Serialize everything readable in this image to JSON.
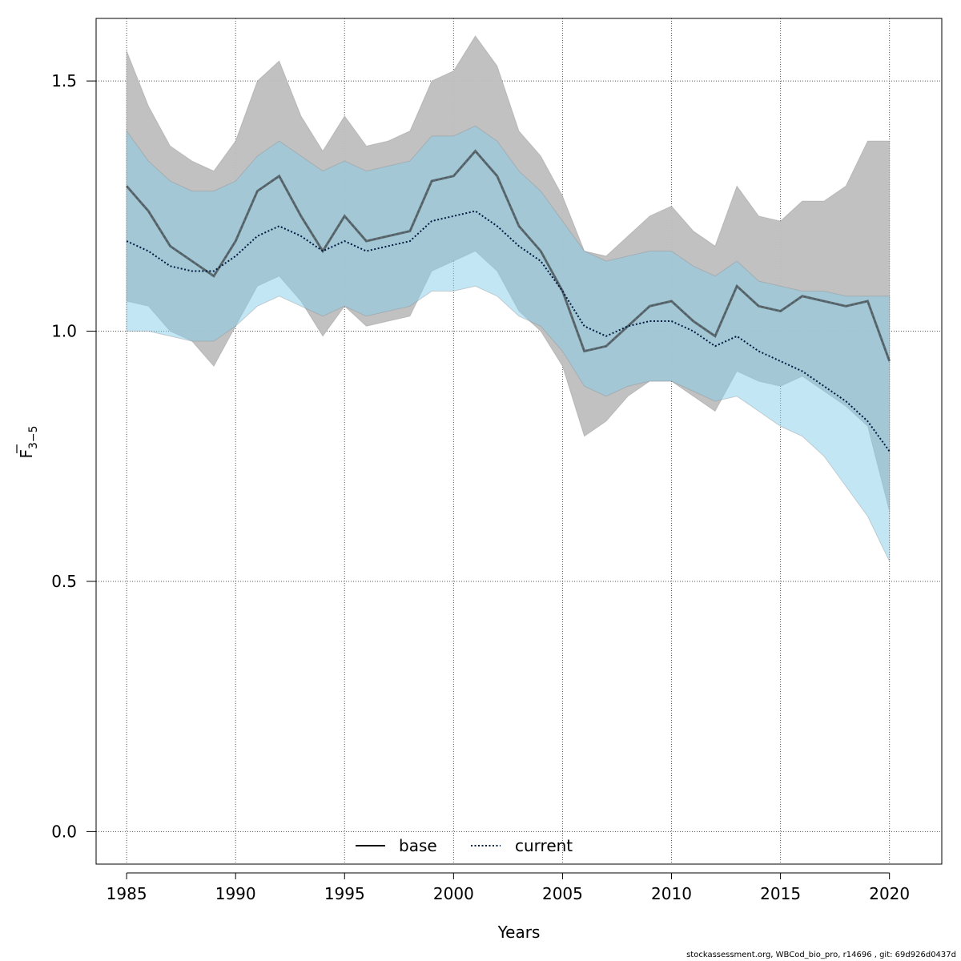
{
  "chart_data": {
    "type": "line",
    "xlabel": "Years",
    "ylabel_main": "F",
    "ylabel_sub": "3−5",
    "xlim": [
      1983.6,
      2022.4
    ],
    "ylim": [
      -0.065,
      1.625
    ],
    "x_ticks": [
      1985,
      1990,
      1995,
      2000,
      2005,
      2010,
      2015,
      2020
    ],
    "y_ticks": [
      0.0,
      0.5,
      1.0,
      1.5
    ],
    "y_tick_labels": [
      "0.0",
      "0.5",
      "1.0",
      "1.5"
    ],
    "grid": true,
    "legend_position": "bottom-center",
    "x": [
      1985,
      1986,
      1987,
      1988,
      1989,
      1990,
      1991,
      1992,
      1993,
      1994,
      1995,
      1996,
      1997,
      1998,
      1999,
      2000,
      2001,
      2002,
      2003,
      2004,
      2005,
      2006,
      2007,
      2008,
      2009,
      2010,
      2011,
      2012,
      2013,
      2014,
      2015,
      2016,
      2017,
      2018,
      2019,
      2020
    ],
    "series": [
      {
        "name": "base",
        "line_style": "solid",
        "line_color": "#000000",
        "band_color": "#bebebe",
        "values": [
          1.29,
          1.24,
          1.17,
          1.14,
          1.11,
          1.18,
          1.28,
          1.31,
          1.23,
          1.16,
          1.23,
          1.18,
          1.19,
          1.2,
          1.3,
          1.31,
          1.36,
          1.31,
          1.21,
          1.16,
          1.08,
          0.96,
          0.97,
          1.01,
          1.05,
          1.06,
          1.02,
          0.99,
          1.09,
          1.05,
          1.04,
          1.07,
          1.06,
          1.05,
          1.06,
          0.94
        ],
        "lower": [
          1.06,
          1.05,
          1.0,
          0.98,
          0.93,
          1.01,
          1.09,
          1.11,
          1.06,
          0.99,
          1.05,
          1.01,
          1.02,
          1.03,
          1.12,
          1.14,
          1.16,
          1.12,
          1.04,
          1.0,
          0.93,
          0.79,
          0.82,
          0.87,
          0.9,
          0.9,
          0.87,
          0.84,
          0.92,
          0.9,
          0.89,
          0.91,
          0.88,
          0.85,
          0.81,
          0.64
        ],
        "upper": [
          1.56,
          1.45,
          1.37,
          1.34,
          1.32,
          1.38,
          1.5,
          1.54,
          1.43,
          1.36,
          1.43,
          1.37,
          1.38,
          1.4,
          1.5,
          1.52,
          1.59,
          1.53,
          1.4,
          1.35,
          1.27,
          1.16,
          1.15,
          1.19,
          1.23,
          1.25,
          1.2,
          1.17,
          1.29,
          1.23,
          1.22,
          1.26,
          1.26,
          1.29,
          1.38,
          1.38
        ]
      },
      {
        "name": "current",
        "line_style": "dotted",
        "line_color": "#00193f",
        "band_color": "#87ceeb",
        "values": [
          1.18,
          1.16,
          1.13,
          1.12,
          1.12,
          1.15,
          1.19,
          1.21,
          1.19,
          1.16,
          1.18,
          1.16,
          1.17,
          1.18,
          1.22,
          1.23,
          1.24,
          1.21,
          1.17,
          1.14,
          1.08,
          1.01,
          0.99,
          1.01,
          1.02,
          1.02,
          1.0,
          0.97,
          0.99,
          0.96,
          0.94,
          0.92,
          0.89,
          0.86,
          0.82,
          0.76
        ],
        "lower": [
          1.0,
          1.0,
          0.99,
          0.98,
          0.98,
          1.01,
          1.05,
          1.07,
          1.05,
          1.03,
          1.05,
          1.03,
          1.04,
          1.05,
          1.08,
          1.08,
          1.09,
          1.07,
          1.03,
          1.01,
          0.96,
          0.89,
          0.87,
          0.89,
          0.9,
          0.9,
          0.88,
          0.86,
          0.87,
          0.84,
          0.81,
          0.79,
          0.75,
          0.69,
          0.63,
          0.54
        ],
        "upper": [
          1.4,
          1.34,
          1.3,
          1.28,
          1.28,
          1.3,
          1.35,
          1.38,
          1.35,
          1.32,
          1.34,
          1.32,
          1.33,
          1.34,
          1.39,
          1.39,
          1.41,
          1.38,
          1.32,
          1.28,
          1.22,
          1.16,
          1.14,
          1.15,
          1.16,
          1.16,
          1.13,
          1.11,
          1.14,
          1.1,
          1.09,
          1.08,
          1.08,
          1.07,
          1.07,
          1.07
        ]
      }
    ]
  },
  "footer": {
    "text": "stockassessment.org, WBCod_bio_pro, r14696 , git: 69d926d0437d"
  }
}
